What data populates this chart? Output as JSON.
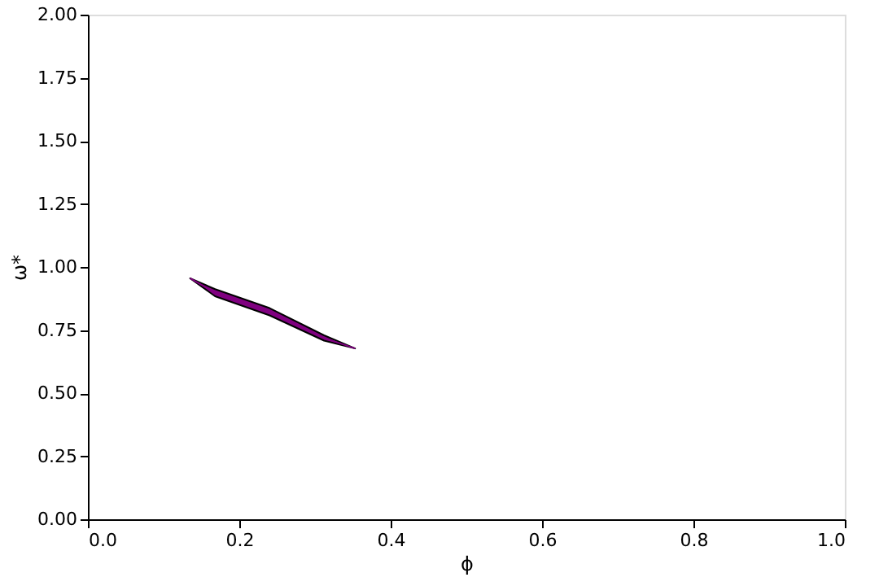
{
  "chart_data": {
    "type": "line",
    "xlabel": "ϕ",
    "ylabel": "ω*",
    "x": [
      0.135,
      0.168,
      0.24,
      0.312,
      0.353
    ],
    "series": [
      {
        "color": "#800080",
        "values": [
          0.955,
          0.898,
          0.823,
          0.719,
          0.677
        ],
        "lower": [
          0.955,
          0.884,
          0.808,
          0.708,
          0.677
        ],
        "upper": [
          0.955,
          0.912,
          0.837,
          0.729,
          0.677
        ]
      }
    ],
    "xlim": [
      0,
      1
    ],
    "xticks": [
      {
        "value": 0,
        "label": "0.0"
      },
      {
        "value": 0.2,
        "label": "0.2"
      },
      {
        "value": 0.4,
        "label": "0.4"
      },
      {
        "value": 0.6,
        "label": "0.6"
      },
      {
        "value": 0.8,
        "label": "0.8"
      },
      {
        "value": 1,
        "label": "1.0"
      }
    ],
    "ylim": [
      0,
      2
    ],
    "yticks": [
      {
        "value": 0,
        "label": "0.00"
      },
      {
        "value": 0.25,
        "label": "0.25"
      },
      {
        "value": 0.5,
        "label": "0.50"
      },
      {
        "value": 0.75,
        "label": "0.75"
      },
      {
        "value": 1,
        "label": "1.00"
      },
      {
        "value": 1.25,
        "label": "1.25"
      },
      {
        "value": 1.5,
        "label": "1.50"
      },
      {
        "value": 1.75,
        "label": "1.75"
      },
      {
        "value": 2,
        "label": "2.00"
      }
    ],
    "grid": false
  }
}
